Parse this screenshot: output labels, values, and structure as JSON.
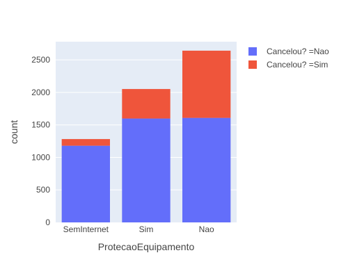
{
  "chart_data": {
    "type": "bar",
    "barmode": "stack",
    "xlabel": "ProtecaoEquipamento",
    "ylabel": "count",
    "categories": [
      "SemInternet",
      "Sim",
      "Nao"
    ],
    "yticks": [
      0,
      500,
      1000,
      1500,
      2000,
      2500
    ],
    "ylim": [
      0,
      2780
    ],
    "grid": true,
    "legend_position": "top-right",
    "series": [
      {
        "name": "Cancelou? =Nao",
        "color": "#636efa",
        "values": [
          1180,
          1598,
          1608
        ]
      },
      {
        "name": "Cancelou? =Sim",
        "color": "#ef553b",
        "values": [
          102,
          454,
          1034
        ]
      }
    ],
    "colors": {
      "plot_bg": "#e5ecf6",
      "grid": "#ffffff",
      "text": "#444444"
    }
  }
}
